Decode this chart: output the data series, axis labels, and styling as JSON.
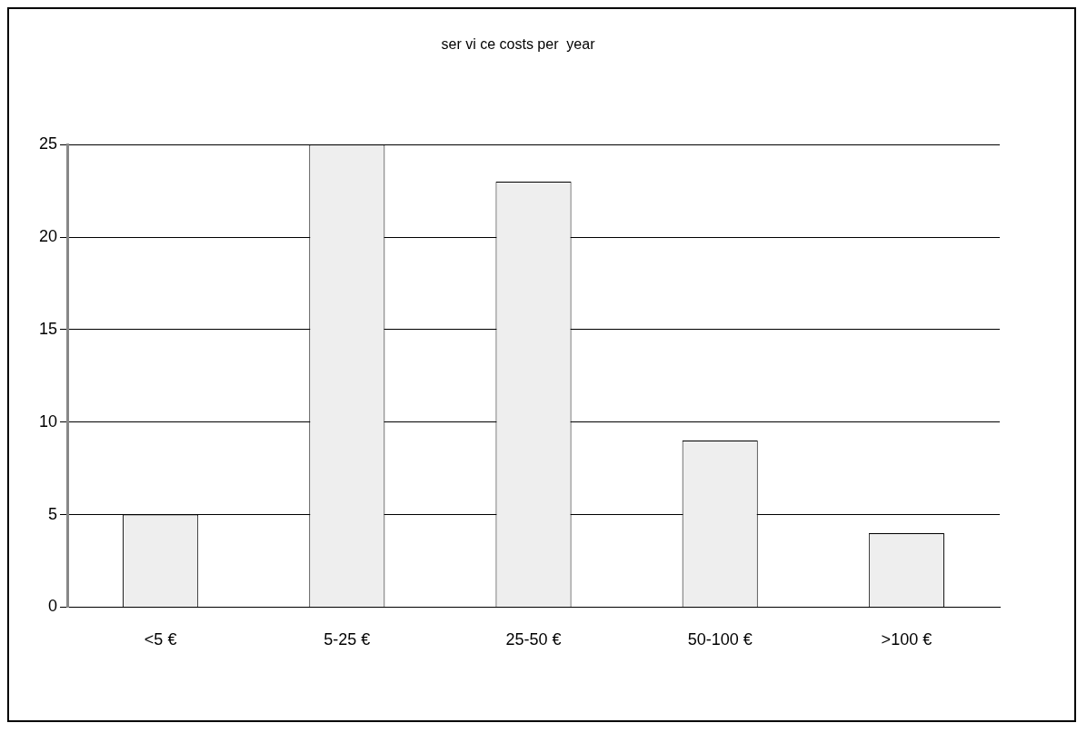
{
  "chart_data": {
    "type": "bar",
    "title": "ser vi ce costs per  year",
    "categories": [
      "<5 €",
      "5-25 €",
      "25-50 €",
      "50-100 €",
      ">100 €"
    ],
    "values": [
      5,
      25,
      23,
      9,
      4
    ],
    "color": "#eeeeee",
    "ylim": [
      0,
      25
    ],
    "yticks": [
      0,
      5,
      10,
      15,
      20,
      25
    ],
    "grid": "y",
    "legend": false
  }
}
